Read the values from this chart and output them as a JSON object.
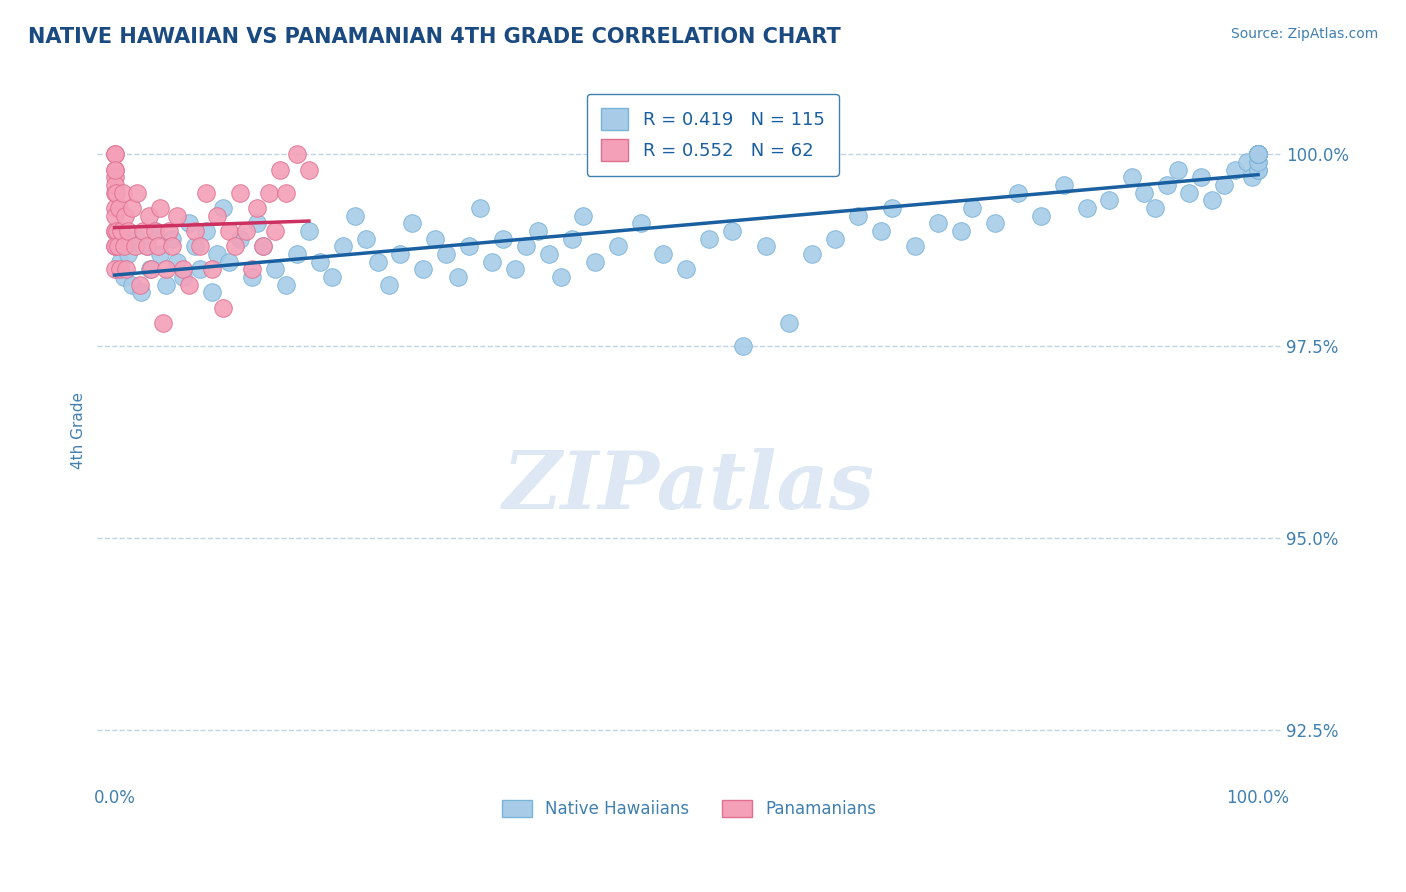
{
  "title": "NATIVE HAWAIIAN VS PANAMANIAN 4TH GRADE CORRELATION CHART",
  "source_text": "Source: ZipAtlas.com",
  "ylabel": "4th Grade",
  "legend_labels": [
    "Native Hawaiians",
    "Panamanians"
  ],
  "blue_color": "#a8cce8",
  "blue_edge": "#7ab3d8",
  "pink_color": "#f4a0b8",
  "pink_edge": "#e07090",
  "trendline_blue": "#1a5fa0",
  "trendline_pink": "#cc3060",
  "watermark_text": "ZIPatlas",
  "watermark_color": "#dde8f4",
  "R_blue": 0.419,
  "N_blue": 115,
  "R_pink": 0.552,
  "N_pink": 62,
  "grid_color": "#c0d4e8",
  "title_color": "#1a4a80",
  "axis_color": "#4080b0",
  "background": "#ffffff",
  "ylim": [
    91.8,
    101.0
  ],
  "xlim": [
    -1.5,
    102
  ],
  "yticks": [
    92.5,
    95.0,
    97.5,
    100.0
  ],
  "xticks": [
    0,
    100
  ],
  "blue_x": [
    0.5,
    0.8,
    1.2,
    1.5,
    2.0,
    2.3,
    2.8,
    3.1,
    3.5,
    4.0,
    4.5,
    5.0,
    5.5,
    6.0,
    6.5,
    7.0,
    7.5,
    8.0,
    8.5,
    9.0,
    9.5,
    10.0,
    11.0,
    12.0,
    12.5,
    13.0,
    14.0,
    15.0,
    16.0,
    17.0,
    18.0,
    19.0,
    20.0,
    21.0,
    22.0,
    23.0,
    24.0,
    25.0,
    26.0,
    27.0,
    28.0,
    29.0,
    30.0,
    31.0,
    32.0,
    33.0,
    34.0,
    35.0,
    36.0,
    37.0,
    38.0,
    39.0,
    40.0,
    41.0,
    42.0,
    44.0,
    46.0,
    48.0,
    50.0,
    52.0,
    54.0,
    55.0,
    57.0,
    59.0,
    61.0,
    63.0,
    65.0,
    67.0,
    68.0,
    70.0,
    72.0,
    74.0,
    75.0,
    77.0,
    79.0,
    81.0,
    83.0,
    85.0,
    87.0,
    89.0,
    90.0,
    91.0,
    92.0,
    93.0,
    94.0,
    95.0,
    96.0,
    97.0,
    98.0,
    99.0,
    99.5,
    100.0,
    100.0,
    100.0,
    100.0,
    100.0,
    100.0,
    100.0,
    100.0,
    100.0,
    100.0,
    100.0,
    100.0,
    100.0,
    100.0,
    100.0,
    100.0,
    100.0,
    100.0,
    100.0,
    100.0,
    100.0,
    100.0,
    100.0,
    100.0
  ],
  "blue_y": [
    98.6,
    98.4,
    98.7,
    98.3,
    98.9,
    98.2,
    98.8,
    98.5,
    99.0,
    98.7,
    98.3,
    98.9,
    98.6,
    98.4,
    99.1,
    98.8,
    98.5,
    99.0,
    98.2,
    98.7,
    99.3,
    98.6,
    98.9,
    98.4,
    99.1,
    98.8,
    98.5,
    98.3,
    98.7,
    99.0,
    98.6,
    98.4,
    98.8,
    99.2,
    98.9,
    98.6,
    98.3,
    98.7,
    99.1,
    98.5,
    98.9,
    98.7,
    98.4,
    98.8,
    99.3,
    98.6,
    98.9,
    98.5,
    98.8,
    99.0,
    98.7,
    98.4,
    98.9,
    99.2,
    98.6,
    98.8,
    99.1,
    98.7,
    98.5,
    98.9,
    99.0,
    97.5,
    98.8,
    97.8,
    98.7,
    98.9,
    99.2,
    99.0,
    99.3,
    98.8,
    99.1,
    99.0,
    99.3,
    99.1,
    99.5,
    99.2,
    99.6,
    99.3,
    99.4,
    99.7,
    99.5,
    99.3,
    99.6,
    99.8,
    99.5,
    99.7,
    99.4,
    99.6,
    99.8,
    99.9,
    99.7,
    100.0,
    99.8,
    100.0,
    99.9,
    100.0,
    100.0,
    100.0,
    100.0,
    100.0,
    100.0,
    99.8,
    100.0,
    99.9,
    100.0,
    100.0,
    100.0,
    100.0,
    100.0,
    100.0,
    100.0,
    100.0,
    100.0,
    100.0,
    100.0
  ],
  "pink_x": [
    0.0,
    0.0,
    0.0,
    0.0,
    0.0,
    0.0,
    0.0,
    0.0,
    0.0,
    0.0,
    0.0,
    0.0,
    0.0,
    0.0,
    0.1,
    0.2,
    0.3,
    0.4,
    0.5,
    0.6,
    0.7,
    0.8,
    0.9,
    1.0,
    1.2,
    1.5,
    1.8,
    2.0,
    2.2,
    2.5,
    2.8,
    3.0,
    3.2,
    3.5,
    3.8,
    4.0,
    4.2,
    4.5,
    4.8,
    5.0,
    5.5,
    6.0,
    6.5,
    7.0,
    7.5,
    8.0,
    8.5,
    9.0,
    9.5,
    10.0,
    10.5,
    11.0,
    11.5,
    12.0,
    12.5,
    13.0,
    13.5,
    14.0,
    14.5,
    15.0,
    16.0,
    17.0
  ],
  "pink_y": [
    99.8,
    100.0,
    99.5,
    99.7,
    100.0,
    98.8,
    99.0,
    99.3,
    99.6,
    99.8,
    98.5,
    99.0,
    98.8,
    99.2,
    99.5,
    99.0,
    98.8,
    99.3,
    98.5,
    99.0,
    99.5,
    98.8,
    99.2,
    98.5,
    99.0,
    99.3,
    98.8,
    99.5,
    98.3,
    99.0,
    98.8,
    99.2,
    98.5,
    99.0,
    98.8,
    99.3,
    97.8,
    98.5,
    99.0,
    98.8,
    99.2,
    98.5,
    98.3,
    99.0,
    98.8,
    99.5,
    98.5,
    99.2,
    98.0,
    99.0,
    98.8,
    99.5,
    99.0,
    98.5,
    99.3,
    98.8,
    99.5,
    99.0,
    99.8,
    99.5,
    100.0,
    99.8
  ]
}
